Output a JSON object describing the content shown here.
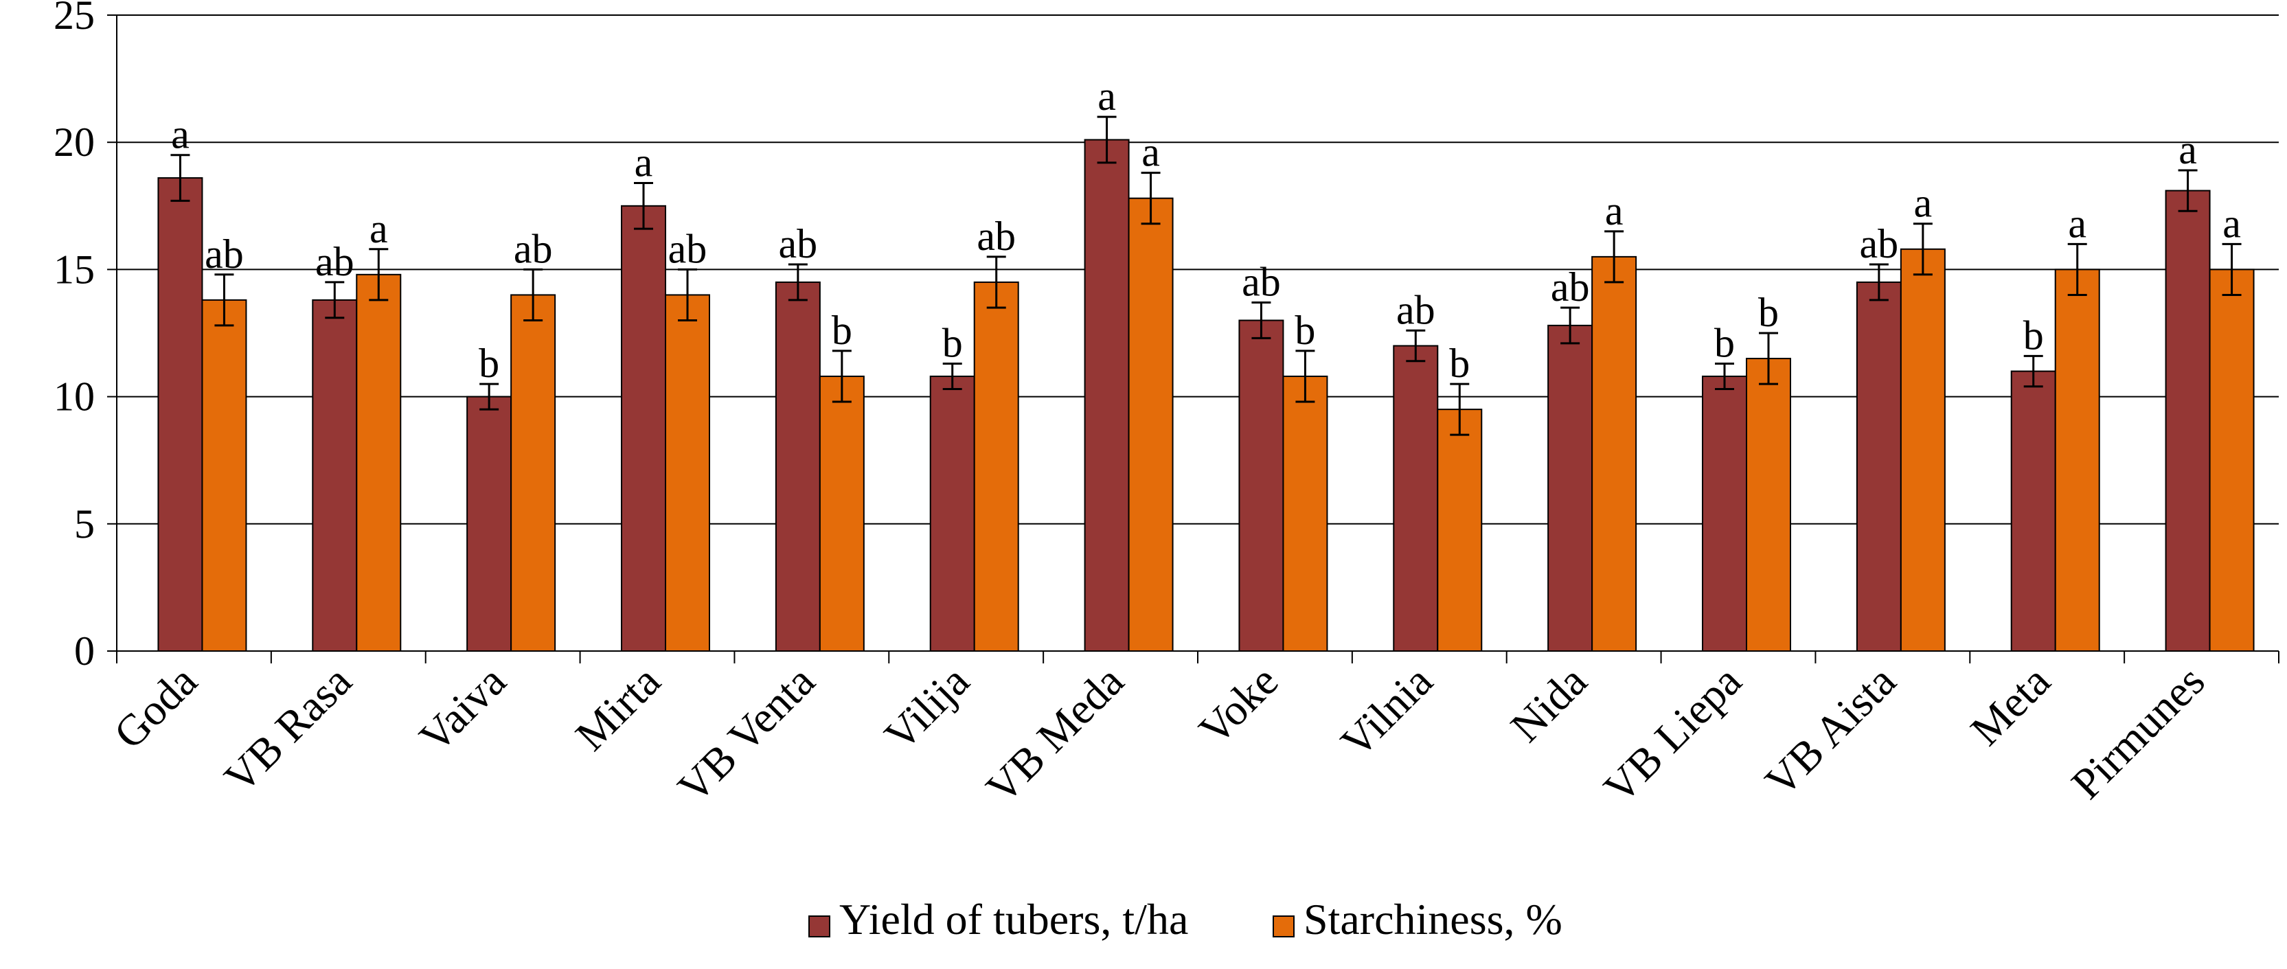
{
  "chart_data": {
    "type": "bar",
    "title": "",
    "xlabel": "",
    "ylabel": "",
    "ylim": [
      0,
      25
    ],
    "yticks": [
      0,
      5,
      10,
      15,
      20,
      25
    ],
    "grid": true,
    "legend_position": "bottom",
    "categories": [
      "Goda",
      "VB Rasa",
      "Vaiva",
      "Mirta",
      "VB Venta",
      "Vilija",
      "VB Meda",
      "Voke",
      "Vilnia",
      "Nida",
      "VB Liepa",
      "VB Aista",
      "Meta",
      "Pirmunes"
    ],
    "series": [
      {
        "name": "Yield of tubers, t/ha",
        "color": "#953735",
        "values": [
          18.6,
          13.8,
          10.0,
          17.5,
          14.5,
          10.8,
          20.1,
          13.0,
          12.0,
          12.8,
          10.8,
          14.5,
          11.0,
          18.1
        ],
        "errors": [
          0.9,
          0.7,
          0.5,
          0.9,
          0.7,
          0.5,
          0.9,
          0.7,
          0.6,
          0.7,
          0.5,
          0.7,
          0.6,
          0.8
        ],
        "significance": [
          "a",
          "ab",
          "b",
          "a",
          "ab",
          "b",
          "a",
          "ab",
          "ab",
          "ab",
          "b",
          "ab",
          "b",
          "a"
        ]
      },
      {
        "name": "Starchiness, %",
        "color": "#E46C0A",
        "values": [
          13.8,
          14.8,
          14.0,
          14.0,
          10.8,
          14.5,
          17.8,
          10.8,
          9.5,
          15.5,
          11.5,
          15.8,
          15.0,
          15.0
        ],
        "errors": [
          1.0,
          1.0,
          1.0,
          1.0,
          1.0,
          1.0,
          1.0,
          1.0,
          1.0,
          1.0,
          1.0,
          1.0,
          1.0,
          1.0
        ],
        "significance": [
          "ab",
          "a",
          "ab",
          "ab",
          "b",
          "ab",
          "a",
          "b",
          "b",
          "a",
          "b",
          "a",
          "a",
          "a"
        ]
      }
    ]
  }
}
